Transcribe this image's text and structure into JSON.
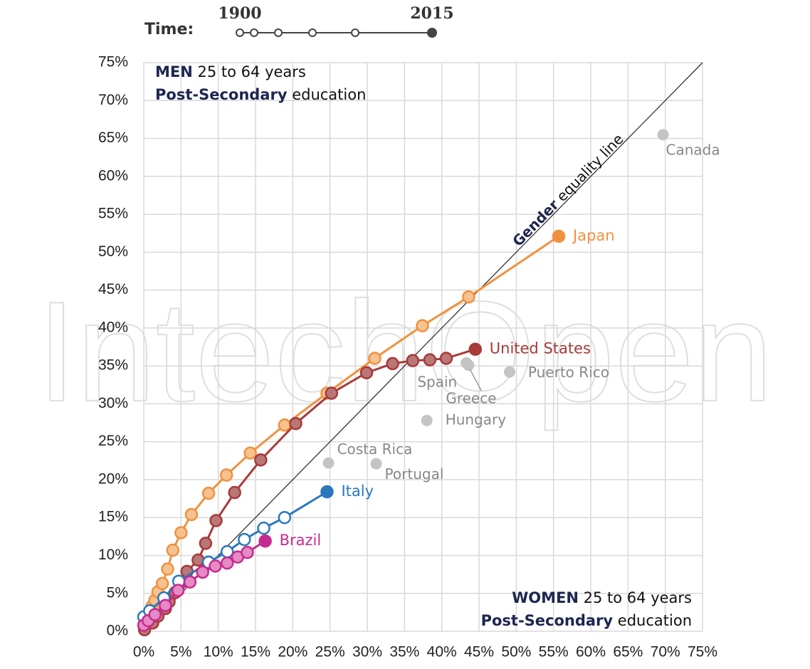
{
  "watermark": "IntechOpen",
  "time_slider": {
    "label": "Time:",
    "start": "1900",
    "end": "2015"
  },
  "chart_data": {
    "type": "line",
    "top_left_label": {
      "bold": "MEN",
      "rest": "25 to 64 years",
      "line2_bold": "Post-Secondary",
      "line2_rest": "education"
    },
    "bottom_right_label": {
      "bold": "WOMEN",
      "rest": "25 to 64 years",
      "line2_bold": "Post-Secondary",
      "line2_rest": "education"
    },
    "equality_line": {
      "bold": "Gender",
      "rest": "equality line"
    },
    "xlim": [
      0,
      75
    ],
    "ylim": [
      0,
      75
    ],
    "xticks": [
      {
        "value": 0,
        "label": "0%"
      },
      {
        "value": 5,
        "label": "5%"
      },
      {
        "value": 10,
        "label": "10%"
      },
      {
        "value": 15,
        "label": "15%"
      },
      {
        "value": 20,
        "label": "20%"
      },
      {
        "value": 25,
        "label": "25%"
      },
      {
        "value": 30,
        "label": "30%"
      },
      {
        "value": 35,
        "label": "35%"
      },
      {
        "value": 40,
        "label": "40%"
      },
      {
        "value": 45,
        "label": "45%"
      },
      {
        "value": 50,
        "label": "50%"
      },
      {
        "value": 55,
        "label": "55%"
      },
      {
        "value": 60,
        "label": "60%"
      },
      {
        "value": 65,
        "label": "65%"
      },
      {
        "value": 70,
        "label": "70%"
      },
      {
        "value": 75,
        "label": "75%"
      }
    ],
    "yticks": [
      {
        "value": 0,
        "label": "0%"
      },
      {
        "value": 5,
        "label": "5%"
      },
      {
        "value": 10,
        "label": "10%"
      },
      {
        "value": 15,
        "label": "15%"
      },
      {
        "value": 20,
        "label": "20%"
      },
      {
        "value": 25,
        "label": "25%"
      },
      {
        "value": 30,
        "label": "30%"
      },
      {
        "value": 35,
        "label": "35%"
      },
      {
        "value": 40,
        "label": "40%"
      },
      {
        "value": 45,
        "label": "45%"
      },
      {
        "value": 50,
        "label": "50%"
      },
      {
        "value": 55,
        "label": "55%"
      },
      {
        "value": 60,
        "label": "60%"
      },
      {
        "value": 65,
        "label": "65%"
      },
      {
        "value": 70,
        "label": "70%"
      },
      {
        "value": 75,
        "label": "75%"
      }
    ],
    "grid": true,
    "series": [
      {
        "name": "Japan",
        "color": "#f0913f",
        "marker_fill": "#f6c28f",
        "x": [
          0.1,
          0.5,
          0.9,
          1.1,
          1.5,
          1.9,
          2.5,
          3.2,
          3.9,
          5.0,
          6.4,
          8.7,
          11.1,
          14.3,
          18.9,
          24.6,
          31.0,
          37.4,
          43.6,
          55.7
        ],
        "values": [
          0.7,
          1.6,
          2.5,
          3.3,
          4.1,
          5.2,
          6.3,
          8.2,
          10.7,
          13.0,
          15.4,
          18.2,
          20.6,
          23.5,
          27.2,
          31.4,
          36.0,
          40.3,
          44.1,
          52.1
        ]
      },
      {
        "name": "United States",
        "color": "#a83a3a",
        "marker_fill": "#b97777",
        "x": [
          0.1,
          1.2,
          1.9,
          2.9,
          3.4,
          4.2,
          5.1,
          5.8,
          7.3,
          8.3,
          9.7,
          12.2,
          15.7,
          20.4,
          25.2,
          29.9,
          33.4,
          36.1,
          38.4,
          40.6,
          44.5
        ],
        "values": [
          0.2,
          1.1,
          2.0,
          3.0,
          3.9,
          5.1,
          6.5,
          7.9,
          9.4,
          11.6,
          14.6,
          18.3,
          22.6,
          27.4,
          31.4,
          34.1,
          35.3,
          35.7,
          35.8,
          36.0,
          37.2
        ]
      },
      {
        "name": "Italy",
        "color": "#2a78bd",
        "marker_fill": "#ffffff",
        "x": [
          0.0,
          0.8,
          2.7,
          4.7,
          8.7,
          11.2,
          13.5,
          16.1,
          18.9,
          24.6
        ],
        "values": [
          1.9,
          2.7,
          4.4,
          6.6,
          9.1,
          10.5,
          12.1,
          13.6,
          15.0,
          18.4
        ]
      },
      {
        "name": "Brazil",
        "color": "#c72a8e",
        "marker_fill": "#e48ac4",
        "x": [
          0.0,
          0.6,
          1.5,
          2.9,
          4.6,
          6.2,
          7.9,
          9.6,
          11.2,
          12.6,
          13.9,
          16.3
        ],
        "values": [
          0.8,
          1.4,
          2.2,
          3.4,
          5.4,
          6.5,
          7.8,
          8.6,
          9.0,
          9.8,
          10.4,
          11.9
        ]
      }
    ],
    "points_color": "#c4c4c4",
    "points": [
      {
        "name": "Canada",
        "x": 69.7,
        "y": 65.5
      },
      {
        "name": "Spain",
        "x": 43.3,
        "y": 35.4
      },
      {
        "name": "Greece",
        "x": 43.6,
        "y": 35.1
      },
      {
        "name": "Puerto Rico",
        "x": 49.1,
        "y": 34.2
      },
      {
        "name": "Hungary",
        "x": 38.0,
        "y": 27.8
      },
      {
        "name": "Costa Rica",
        "x": 24.8,
        "y": 22.2
      },
      {
        "name": "Portugal",
        "x": 31.2,
        "y": 22.1
      }
    ]
  }
}
